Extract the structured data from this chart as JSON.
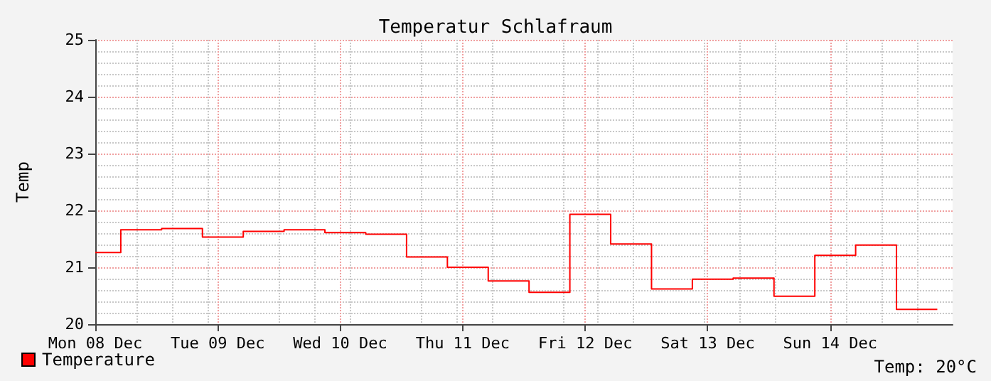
{
  "chart_data": {
    "type": "step",
    "title": "Temperatur Schlafraum",
    "ylabel": "Temp",
    "x": [
      "--12-08T12:00",
      "--12-08T17:00",
      "--12-09T01:00",
      "--12-09T09:00",
      "--12-09T17:00",
      "--12-10T01:00",
      "--12-10T09:00",
      "--12-10T17:00",
      "--12-11T01:00",
      "--12-11T09:00",
      "--12-11T17:00",
      "--12-12T01:00",
      "--12-12T09:00",
      "--12-12T17:00",
      "--12-13T01:00",
      "--12-13T09:00",
      "--12-13T17:00",
      "--12-14T01:00",
      "--12-14T09:00",
      "--12-14T17:00",
      "--12-15T01:00",
      "--12-15T09:00"
    ],
    "series": [
      {
        "name": "Temperature",
        "color": "#ff0000",
        "values": [
          21.26,
          21.66,
          21.68,
          21.53,
          21.63,
          21.66,
          21.61,
          21.58,
          21.18,
          21.0,
          20.76,
          20.56,
          21.93,
          21.41,
          20.62,
          20.79,
          20.81,
          20.49,
          21.21,
          21.39,
          20.26,
          20.26
        ]
      }
    ],
    "xlim": [
      "--12-08T12:00",
      "--12-15T12:00"
    ],
    "xticks": [
      {
        "value": "--12-08T12:00",
        "label": "Mon 08 Dec"
      },
      {
        "value": "--12-09T12:00",
        "label": "Tue 09 Dec"
      },
      {
        "value": "--12-10T12:00",
        "label": "Wed 10 Dec"
      },
      {
        "value": "--12-11T12:00",
        "label": "Thu 11 Dec"
      },
      {
        "value": "--12-12T12:00",
        "label": "Fri 12 Dec"
      },
      {
        "value": "--12-13T12:00",
        "label": "Sat 13 Dec"
      },
      {
        "value": "--12-14T12:00",
        "label": "Sun 14 Dec"
      }
    ],
    "ylim": [
      20,
      25
    ],
    "yticks": [
      20,
      21,
      22,
      23,
      24,
      25
    ],
    "grid": true,
    "legend": "bottom left",
    "annotations": [
      "Temp: 20°C"
    ]
  }
}
